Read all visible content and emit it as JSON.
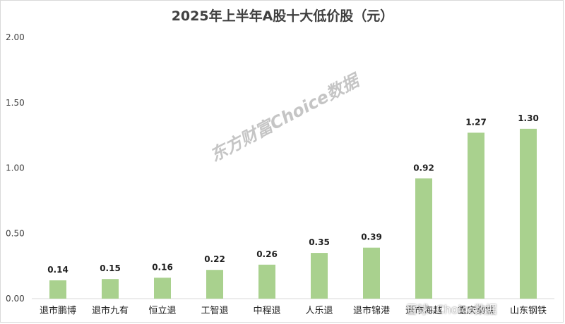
{
  "chart_data": {
    "type": "bar",
    "title": "2025年上半年A股十大低价股（元）",
    "categories": [
      "退市鹏博",
      "退市九有",
      "恒立退",
      "工智退",
      "中程退",
      "人乐退",
      "退市锦港",
      "退市海越",
      "重庆钢铁",
      "山东钢铁"
    ],
    "values": [
      0.14,
      0.15,
      0.16,
      0.22,
      0.26,
      0.35,
      0.39,
      0.92,
      1.27,
      1.3
    ],
    "value_labels": [
      "0.14",
      "0.15",
      "0.16",
      "0.22",
      "0.26",
      "0.35",
      "0.39",
      "0.92",
      "1.27",
      "1.30"
    ],
    "yticks": [
      "0.00",
      "0.50",
      "1.00",
      "1.50",
      "2.00"
    ],
    "ylim": [
      0,
      2
    ],
    "grid": false,
    "xlabel": "",
    "ylabel": "",
    "bar_color": "#a9d18e"
  },
  "watermark": "东方财富Choice数据",
  "bottom_watermark": "雪球: Choice数据"
}
